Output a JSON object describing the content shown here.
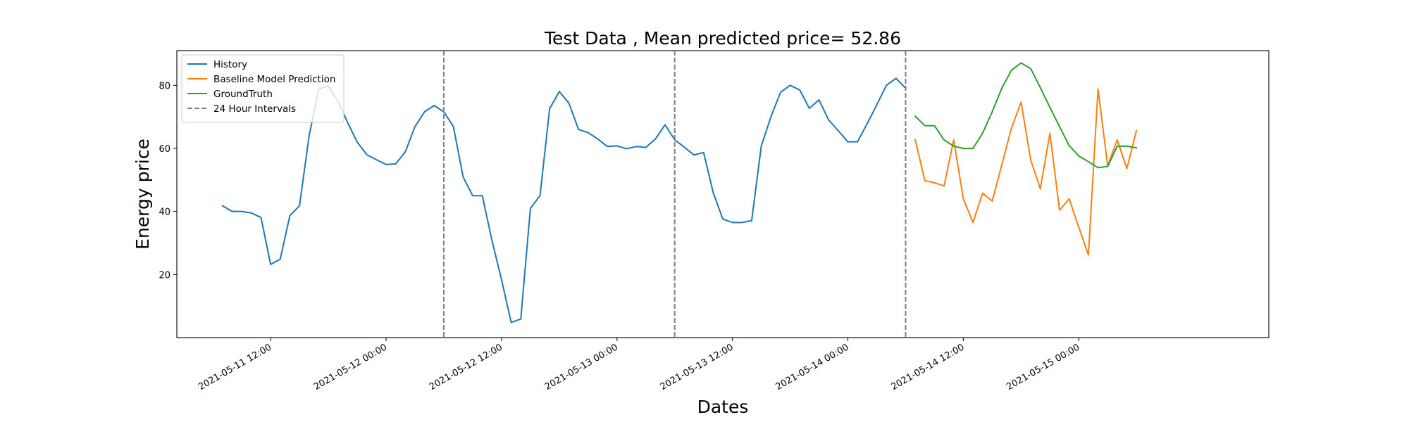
{
  "chart_data": {
    "type": "line",
    "title": "Test Data , Mean predicted price= 52.86",
    "xlabel": "Dates",
    "ylabel": "Energy price",
    "x_type": "datetime",
    "xlim": [
      "2021-05-11 02:15",
      "2021-05-15 19:45"
    ],
    "ylim": [
      0,
      91
    ],
    "grid": false,
    "legend_position": "top-left",
    "yticks": [
      20,
      40,
      60,
      80
    ],
    "xticks": [
      "2021-05-11 12:00",
      "2021-05-12 00:00",
      "2021-05-12 12:00",
      "2021-05-13 00:00",
      "2021-05-13 12:00",
      "2021-05-14 00:00",
      "2021-05-14 12:00",
      "2021-05-15 00:00"
    ],
    "xtick_labels": [
      "2021-05-11 12:00",
      "2021-05-12 00:00",
      "2021-05-12 12:00",
      "2021-05-13 00:00",
      "2021-05-13 12:00",
      "2021-05-14 00:00",
      "2021-05-14 12:00",
      "2021-05-15 00:00"
    ],
    "vlines": {
      "name": "24 Hour Intervals",
      "color": "#7f7f7f",
      "style": "dashed",
      "x": [
        "2021-05-12 06:00",
        "2021-05-13 06:00",
        "2021-05-14 06:00"
      ]
    },
    "series": [
      {
        "name": "History",
        "color": "#1f77b4",
        "x_start": "2021-05-11 07:00",
        "x_step_hours": 1,
        "values": [
          41.8,
          40.0,
          40.0,
          39.5,
          38.1,
          23.2,
          24.9,
          38.7,
          41.8,
          64.0,
          78.8,
          79.8,
          75.0,
          68.2,
          62.0,
          58.0,
          56.4,
          54.9,
          55.1,
          58.9,
          66.9,
          71.6,
          73.6,
          71.6,
          66.9,
          51.0,
          45.0,
          45.0,
          30.9,
          18.4,
          4.8,
          5.9,
          41.0,
          45.0,
          72.6,
          78.0,
          74.4,
          66.0,
          65.0,
          63.0,
          60.6,
          60.8,
          59.9,
          60.6,
          60.3,
          63.0,
          67.5,
          62.7,
          60.4,
          57.9,
          58.7,
          46.0,
          37.6,
          36.5,
          36.5,
          37.1,
          60.8,
          70.0,
          77.8,
          80.0,
          78.5,
          72.7,
          75.4,
          69.0,
          65.6,
          62.1,
          62.1,
          67.8,
          73.8,
          80.0,
          82.2,
          79.1
        ]
      },
      {
        "name": "Baseline Model Prediction",
        "color": "#ff7f0e",
        "x_start": "2021-05-14 07:00",
        "x_step_hours": 1,
        "values": [
          62.7,
          49.8,
          49.1,
          48.1,
          62.7,
          44.0,
          36.5,
          45.8,
          43.3,
          54.8,
          66.4,
          74.7,
          56.4,
          47.2,
          64.8,
          40.4,
          44.0,
          35.0,
          26.2,
          78.8,
          54.5,
          62.7,
          53.6,
          65.7
        ]
      },
      {
        "name": "GroundTruth",
        "color": "#2ca02c",
        "x_start": "2021-05-14 07:00",
        "x_step_hours": 1,
        "values": [
          70.2,
          67.2,
          67.2,
          62.7,
          60.7,
          60.0,
          60.0,
          64.8,
          71.6,
          79.1,
          84.8,
          87.1,
          85.3,
          79.3,
          73.0,
          66.9,
          60.9,
          57.6,
          55.8,
          53.9,
          54.3,
          60.7,
          60.7,
          60.2
        ]
      }
    ]
  }
}
